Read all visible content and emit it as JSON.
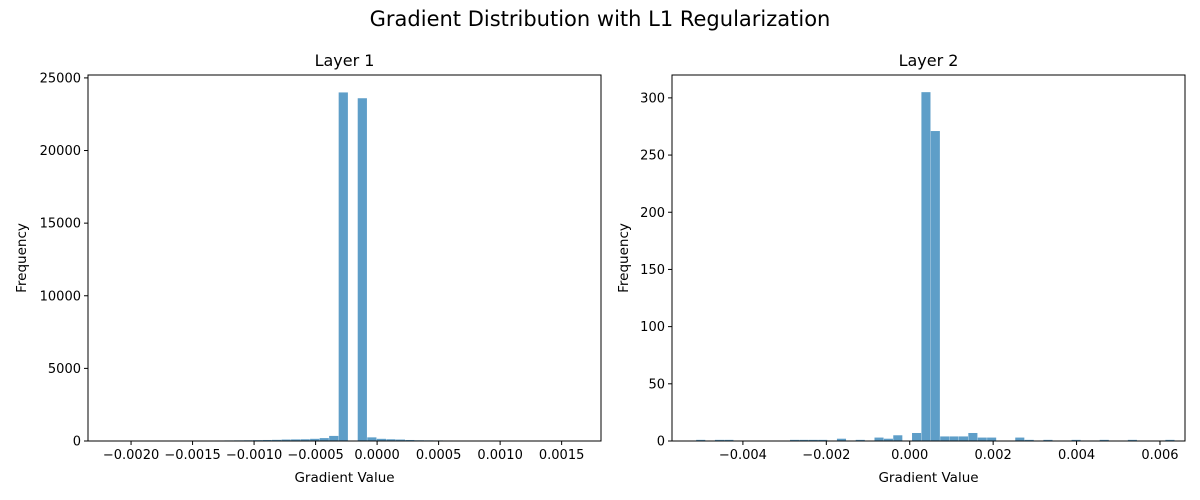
{
  "figure": {
    "suptitle": "Gradient Distribution with L1 Regularization"
  },
  "chart_data": [
    {
      "type": "bar",
      "title": "Layer 1",
      "xlabel": "Gradient Value",
      "ylabel": "Frequency",
      "xlim": [
        -0.00235,
        0.00182
      ],
      "ylim": [
        0,
        25200
      ],
      "xticks": [
        -0.002,
        -0.0015,
        -0.001,
        -0.0005,
        0.0,
        0.0005,
        0.001,
        0.0015
      ],
      "xtick_labels": [
        "−0.0020",
        "−0.0015",
        "−0.0010",
        "−0.0005",
        "0.0000",
        "0.0005",
        "0.0010",
        "0.0015"
      ],
      "yticks": [
        0,
        5000,
        10000,
        15000,
        20000,
        25000
      ],
      "ytick_labels": [
        "0",
        "5000",
        "10000",
        "15000",
        "20000",
        "25000"
      ],
      "color": "#5e9ec8",
      "bins": {
        "start": -0.00217,
        "width": 7.74e-05
      },
      "values": [
        5,
        0,
        3,
        3,
        5,
        5,
        10,
        15,
        20,
        25,
        30,
        35,
        40,
        45,
        50,
        60,
        70,
        80,
        100,
        110,
        120,
        150,
        200,
        350,
        24000,
        0,
        23600,
        250,
        150,
        120,
        100,
        70,
        50,
        45,
        40,
        35,
        30,
        25,
        20,
        15,
        10,
        8,
        5,
        3,
        2,
        2,
        1,
        1,
        0,
        0,
        1
      ]
    },
    {
      "type": "bar",
      "title": "Layer 2",
      "xlabel": "Gradient Value",
      "ylabel": "Frequency",
      "xlim": [
        -0.0057,
        0.0066
      ],
      "ylim": [
        0,
        320
      ],
      "xticks": [
        -0.004,
        -0.002,
        0.0,
        0.002,
        0.004,
        0.006
      ],
      "xtick_labels": [
        "−0.004",
        "−0.002",
        "0.000",
        "0.002",
        "0.004",
        "0.006"
      ],
      "yticks": [
        0,
        50,
        100,
        150,
        200,
        250,
        300
      ],
      "ytick_labels": [
        "0",
        "50",
        "100",
        "150",
        "200",
        "250",
        "300"
      ],
      "color": "#5e9ec8",
      "bins": {
        "start": -0.00512,
        "width": 0.000225
      },
      "values": [
        1,
        0,
        1,
        1,
        0,
        0,
        0,
        0,
        0,
        0,
        1,
        1,
        1,
        1,
        0,
        2,
        0,
        1,
        0,
        3,
        2,
        5,
        0,
        7,
        305,
        271,
        4,
        4,
        4,
        7,
        3,
        3,
        0,
        0,
        3,
        1,
        0,
        1,
        0,
        0,
        1,
        0,
        0,
        1,
        0,
        0,
        1,
        0,
        0,
        0,
        1
      ]
    }
  ]
}
